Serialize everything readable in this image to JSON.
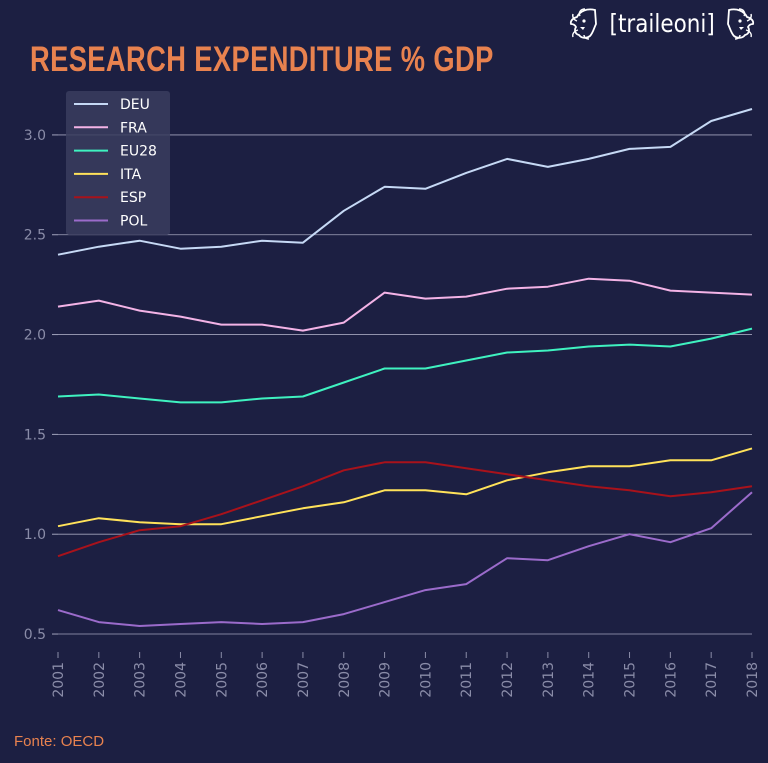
{
  "header": {
    "title": "RESEARCH EXPENDITURE % GDP",
    "brand": "[traileoni]"
  },
  "footer": {
    "source": "Fonte: OECD"
  },
  "chart_data": {
    "type": "line",
    "title": "RESEARCH EXPENDITURE % GDP",
    "xlabel": "",
    "ylabel": "",
    "x": [
      2001,
      2002,
      2003,
      2004,
      2005,
      2006,
      2007,
      2008,
      2009,
      2010,
      2011,
      2012,
      2013,
      2014,
      2015,
      2016,
      2017,
      2018
    ],
    "ylim": [
      0.42,
      3.2
    ],
    "yticks": [
      0.5,
      1.0,
      1.5,
      2.0,
      2.5,
      3.0
    ],
    "grid": "horizontal",
    "legend_position": "top-left",
    "series": [
      {
        "name": "DEU",
        "color": "#c6d9f5",
        "values": [
          2.4,
          2.44,
          2.47,
          2.43,
          2.44,
          2.47,
          2.46,
          2.62,
          2.74,
          2.73,
          2.81,
          2.88,
          2.84,
          2.88,
          2.93,
          2.94,
          3.07,
          3.13
        ]
      },
      {
        "name": "FRA",
        "color": "#f3b3e6",
        "values": [
          2.14,
          2.17,
          2.12,
          2.09,
          2.05,
          2.05,
          2.02,
          2.06,
          2.21,
          2.18,
          2.19,
          2.23,
          2.24,
          2.28,
          2.27,
          2.22,
          2.21,
          2.2
        ]
      },
      {
        "name": "EU28",
        "color": "#3ff2c0",
        "values": [
          1.69,
          1.7,
          1.68,
          1.66,
          1.66,
          1.68,
          1.69,
          1.76,
          1.83,
          1.83,
          1.87,
          1.91,
          1.92,
          1.94,
          1.95,
          1.94,
          1.98,
          2.03
        ]
      },
      {
        "name": "ITA",
        "color": "#ffe25a",
        "values": [
          1.04,
          1.08,
          1.06,
          1.05,
          1.05,
          1.09,
          1.13,
          1.16,
          1.22,
          1.22,
          1.2,
          1.27,
          1.31,
          1.34,
          1.34,
          1.37,
          1.37,
          1.43
        ]
      },
      {
        "name": "ESP",
        "color": "#a8121b",
        "values": [
          0.89,
          0.96,
          1.02,
          1.04,
          1.1,
          1.17,
          1.24,
          1.32,
          1.36,
          1.36,
          1.33,
          1.3,
          1.27,
          1.24,
          1.22,
          1.19,
          1.21,
          1.24
        ]
      },
      {
        "name": "POL",
        "color": "#9b6bcb",
        "values": [
          0.62,
          0.56,
          0.54,
          0.55,
          0.56,
          0.55,
          0.56,
          0.6,
          0.66,
          0.72,
          0.75,
          0.88,
          0.87,
          0.94,
          1.0,
          0.96,
          1.03,
          1.21
        ]
      }
    ]
  }
}
